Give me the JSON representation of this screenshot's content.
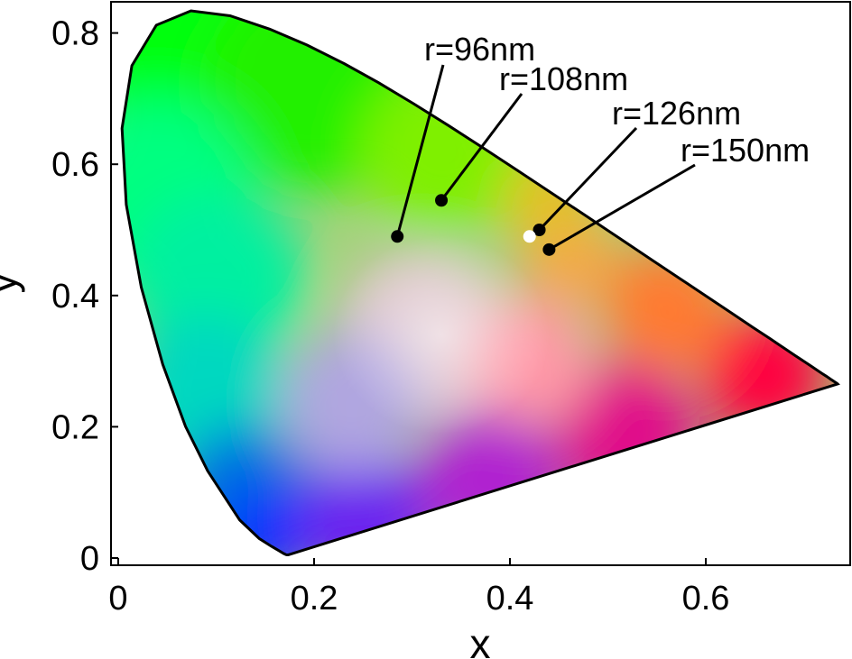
{
  "chart_data": {
    "type": "scatter",
    "title": "",
    "xlabel": "x",
    "ylabel": "y",
    "xlim": [
      0,
      0.74
    ],
    "ylim": [
      0,
      0.85
    ],
    "x_ticks": [
      0,
      0.2,
      0.4,
      0.6
    ],
    "x_tick_labels": [
      "0",
      "0.2",
      "0.4",
      "0.6"
    ],
    "y_ticks": [
      0,
      0.2,
      0.4,
      0.6,
      0.8
    ],
    "y_tick_labels": [
      "0",
      "0.2",
      "0.4",
      "0.6",
      "0.8"
    ],
    "grid": false,
    "background": "CIE 1931 chromaticity diagram",
    "white_point": {
      "x": 0.42,
      "y": 0.49,
      "color": "#ffffff"
    },
    "points": [
      {
        "label": "r=96nm",
        "x": 0.285,
        "y": 0.49
      },
      {
        "label": "r=108nm",
        "x": 0.33,
        "y": 0.545
      },
      {
        "label": "r=126nm",
        "x": 0.43,
        "y": 0.5
      },
      {
        "label": "r=150nm",
        "x": 0.44,
        "y": 0.47
      }
    ],
    "point_color": "#000000",
    "locus": [
      [
        0.1738,
        0.005
      ],
      [
        0.1733,
        0.0048
      ],
      [
        0.1726,
        0.0048
      ],
      [
        0.1714,
        0.0051
      ],
      [
        0.1689,
        0.0069
      ],
      [
        0.1644,
        0.0109
      ],
      [
        0.1566,
        0.0177
      ],
      [
        0.144,
        0.0297
      ],
      [
        0.1241,
        0.0578
      ],
      [
        0.0913,
        0.1327
      ],
      [
        0.0687,
        0.2007
      ],
      [
        0.0454,
        0.295
      ],
      [
        0.0235,
        0.4127
      ],
      [
        0.0082,
        0.5384
      ],
      [
        0.0039,
        0.6548
      ],
      [
        0.0139,
        0.7502
      ],
      [
        0.0389,
        0.812
      ],
      [
        0.0743,
        0.8338
      ],
      [
        0.1142,
        0.8262
      ],
      [
        0.1547,
        0.8059
      ],
      [
        0.1929,
        0.7816
      ],
      [
        0.2296,
        0.7543
      ],
      [
        0.2658,
        0.7243
      ],
      [
        0.3016,
        0.6923
      ],
      [
        0.3373,
        0.6589
      ],
      [
        0.3731,
        0.6245
      ],
      [
        0.4087,
        0.5896
      ],
      [
        0.4441,
        0.5547
      ],
      [
        0.4788,
        0.5202
      ],
      [
        0.5125,
        0.4866
      ],
      [
        0.5448,
        0.4544
      ],
      [
        0.5752,
        0.4242
      ],
      [
        0.6029,
        0.3965
      ],
      [
        0.627,
        0.3725
      ],
      [
        0.6482,
        0.3514
      ],
      [
        0.6658,
        0.334
      ],
      [
        0.6801,
        0.3197
      ],
      [
        0.6915,
        0.3083
      ],
      [
        0.7006,
        0.2993
      ],
      [
        0.7079,
        0.292
      ],
      [
        0.714,
        0.2859
      ],
      [
        0.719,
        0.2809
      ],
      [
        0.723,
        0.277
      ],
      [
        0.726,
        0.274
      ],
      [
        0.7283,
        0.2717
      ],
      [
        0.73,
        0.27
      ],
      [
        0.7311,
        0.2689
      ],
      [
        0.732,
        0.268
      ],
      [
        0.7327,
        0.2673
      ],
      [
        0.7334,
        0.2666
      ],
      [
        0.734,
        0.266
      ],
      [
        0.7344,
        0.2656
      ],
      [
        0.7347,
        0.2653
      ]
    ]
  }
}
